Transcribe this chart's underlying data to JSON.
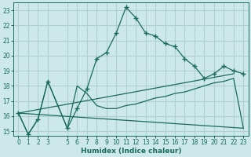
{
  "background_color": "#cce8e8",
  "grid_color": "#b0d0d0",
  "line_color": "#1a6b5a",
  "x_label": "Humidex (Indice chaleur)",
  "xlim": [
    -0.5,
    23.5
  ],
  "ylim": [
    14.7,
    23.5
  ],
  "yticks": [
    15,
    16,
    17,
    18,
    19,
    20,
    21,
    22,
    23
  ],
  "xticks": [
    0,
    1,
    2,
    3,
    5,
    6,
    7,
    8,
    9,
    10,
    11,
    12,
    13,
    14,
    15,
    16,
    17,
    18,
    19,
    20,
    21,
    22,
    23
  ],
  "line1_x": [
    0,
    1,
    2,
    3,
    5,
    6,
    7,
    8,
    9,
    10,
    11,
    12,
    13,
    14,
    15,
    16,
    17,
    18,
    19,
    20,
    21,
    22,
    23
  ],
  "line1_y": [
    16.2,
    14.8,
    15.8,
    18.3,
    15.2,
    16.5,
    17.8,
    19.8,
    20.2,
    21.5,
    23.2,
    22.5,
    21.5,
    21.3,
    20.8,
    20.6,
    19.8,
    19.3,
    18.5,
    18.8,
    19.3,
    19.0,
    18.8
  ],
  "line2_x": [
    0,
    1,
    2,
    3,
    5,
    6,
    7,
    8,
    9,
    10,
    11,
    12,
    13,
    14,
    15,
    16,
    17,
    18,
    19,
    20,
    21,
    22,
    23
  ],
  "line2_y": [
    16.2,
    14.8,
    15.8,
    18.3,
    15.2,
    18.0,
    17.5,
    16.7,
    16.5,
    16.5,
    16.7,
    16.8,
    17.0,
    17.2,
    17.3,
    17.5,
    17.6,
    17.8,
    18.0,
    18.2,
    18.3,
    18.5,
    15.2
  ],
  "line3_x": [
    0,
    22
  ],
  "line3_y": [
    16.2,
    18.8
  ],
  "line4_x": [
    0,
    23
  ],
  "line4_y": [
    16.2,
    15.2
  ],
  "markersize": 3.0
}
